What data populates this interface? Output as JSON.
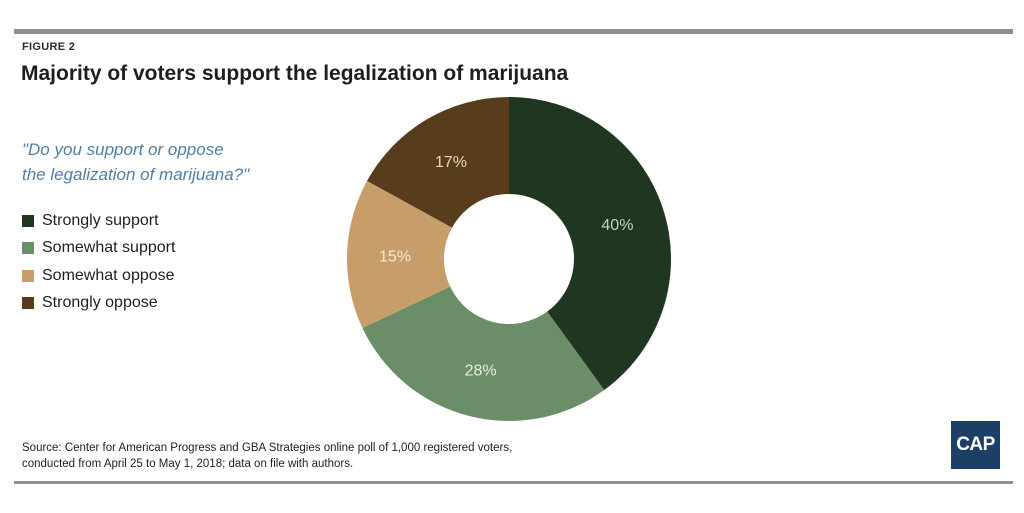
{
  "figure_label": "FIGURE 2",
  "title": "Majority of voters support the legalization of marijuana",
  "question_lines": [
    "\"Do you support or oppose",
    "the legalization of marijuana?\""
  ],
  "source_lines": [
    "Source: Center for American Progress and GBA Strategies online poll of 1,000 registered voters,",
    "conducted from April 25 to May 1, 2018; data on file with authors."
  ],
  "logo_text": "CAP",
  "colors": {
    "strongly_support": "#1f3620",
    "somewhat_support": "#6b8e68",
    "somewhat_oppose": "#c79d6a",
    "strongly_oppose": "#573d1c",
    "question_text": "#4f7fa8",
    "logo_bg": "#1d3f66"
  },
  "chart_data": {
    "type": "pie",
    "variant": "donut",
    "title": "Majority of voters support the legalization of marijuana",
    "categories": [
      "Strongly support",
      "Somewhat support",
      "Somewhat oppose",
      "Strongly oppose"
    ],
    "values": [
      40,
      28,
      15,
      17
    ],
    "labels": [
      "40%",
      "28%",
      "15%",
      "17%"
    ],
    "colors": [
      "#1f3620",
      "#6b8e68",
      "#c79d6a",
      "#573d1c"
    ],
    "label_colors": [
      "#c9cfc6",
      "#e6ece3",
      "#f4ead9",
      "#ead9bf"
    ],
    "start_angle_deg": 0,
    "direction": "clockwise",
    "legend_position": "left"
  }
}
